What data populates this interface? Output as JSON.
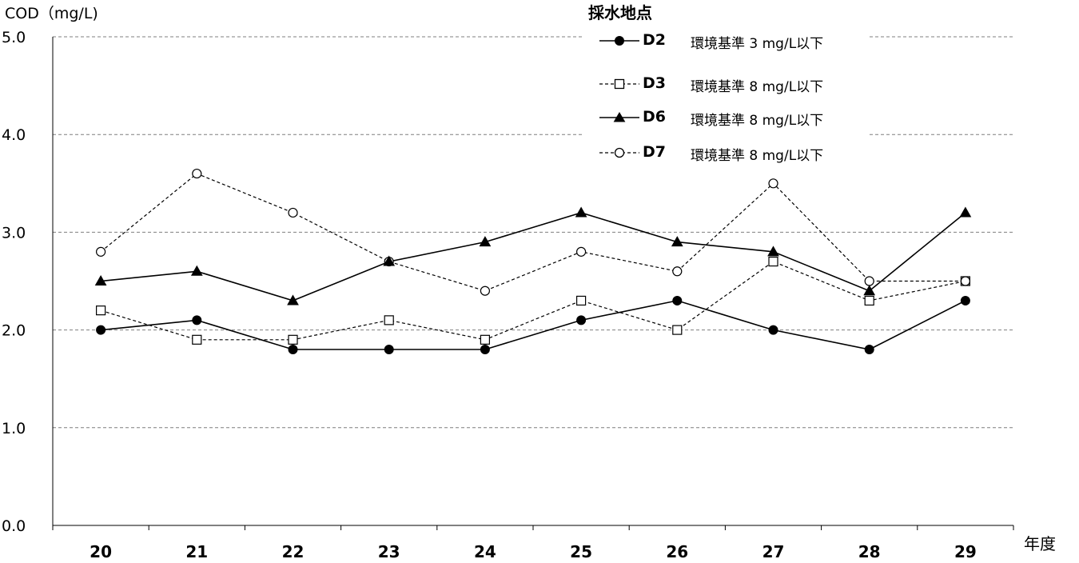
{
  "chart_data": {
    "type": "line",
    "ylabel": "COD（mg/L)",
    "xlabel": "年度",
    "ylim": [
      0,
      5
    ],
    "yticks": [
      "0.0",
      "1.0",
      "2.0",
      "3.0",
      "4.0",
      "5.0"
    ],
    "categories": [
      "20",
      "21",
      "22",
      "23",
      "24",
      "25",
      "26",
      "27",
      "28",
      "29"
    ],
    "grid": true,
    "legend_title": "採水地点",
    "legend_position": "top-right",
    "series": [
      {
        "name": "D2",
        "standard": "環境基準 3 mg/L以下",
        "marker": "filled-circle",
        "line": "solid",
        "values": [
          2.0,
          2.1,
          1.8,
          1.8,
          1.8,
          2.1,
          2.3,
          2.0,
          1.8,
          2.3
        ]
      },
      {
        "name": "D3",
        "standard": "環境基準 8 mg/L以下",
        "marker": "open-square",
        "line": "dashed",
        "values": [
          2.2,
          1.9,
          1.9,
          2.1,
          1.9,
          2.3,
          2.0,
          2.7,
          2.3,
          2.5
        ]
      },
      {
        "name": "D6",
        "standard": "環境基準 8 mg/L以下",
        "marker": "filled-triangle",
        "line": "solid",
        "values": [
          2.5,
          2.6,
          2.3,
          2.7,
          2.9,
          3.2,
          2.9,
          2.8,
          2.4,
          3.2
        ]
      },
      {
        "name": "D7",
        "standard": "環境基準 8 mg/L以下",
        "marker": "open-circle",
        "line": "dashed",
        "values": [
          2.8,
          3.6,
          3.2,
          2.7,
          2.4,
          2.8,
          2.6,
          3.5,
          2.5,
          2.5
        ]
      }
    ]
  }
}
